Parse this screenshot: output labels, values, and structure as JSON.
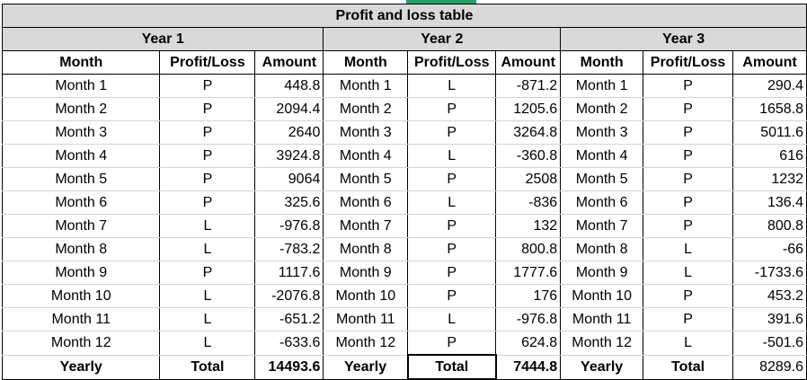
{
  "title": "Profit and loss table",
  "years": [
    "Year 1",
    "Year 2",
    "Year 3"
  ],
  "headers": [
    "Month",
    "Profit/Loss",
    "Amount"
  ],
  "rows": [
    [
      [
        "Month 1",
        "P",
        "448.8"
      ],
      [
        "Month 1",
        "L",
        "-871.2"
      ],
      [
        "Month 1",
        "P",
        "290.4"
      ]
    ],
    [
      [
        "Month 2",
        "P",
        "2094.4"
      ],
      [
        "Month 2",
        "P",
        "1205.6"
      ],
      [
        "Month 2",
        "P",
        "1658.8"
      ]
    ],
    [
      [
        "Month 3",
        "P",
        "2640"
      ],
      [
        "Month 3",
        "P",
        "3264.8"
      ],
      [
        "Month 3",
        "P",
        "5011.6"
      ]
    ],
    [
      [
        "Month 4",
        "P",
        "3924.8"
      ],
      [
        "Month 4",
        "L",
        "-360.8"
      ],
      [
        "Month 4",
        "P",
        "616"
      ]
    ],
    [
      [
        "Month 5",
        "P",
        "9064"
      ],
      [
        "Month 5",
        "P",
        "2508"
      ],
      [
        "Month 5",
        "P",
        "1232"
      ]
    ],
    [
      [
        "Month 6",
        "P",
        "325.6"
      ],
      [
        "Month 6",
        "L",
        "-836"
      ],
      [
        "Month 6",
        "P",
        "136.4"
      ]
    ],
    [
      [
        "Month 7",
        "L",
        "-976.8"
      ],
      [
        "Month 7",
        "P",
        "132"
      ],
      [
        "Month 7",
        "P",
        "800.8"
      ]
    ],
    [
      [
        "Month 8",
        "L",
        "-783.2"
      ],
      [
        "Month 8",
        "P",
        "800.8"
      ],
      [
        "Month 8",
        "L",
        "-66"
      ]
    ],
    [
      [
        "Month 9",
        "P",
        "1117.6"
      ],
      [
        "Month 9",
        "P",
        "1777.6"
      ],
      [
        "Month 9",
        "L",
        "-1733.6"
      ]
    ],
    [
      [
        "Month 10",
        "L",
        "-2076.8"
      ],
      [
        "Month 10",
        "P",
        "176"
      ],
      [
        "Month 10",
        "P",
        "453.2"
      ]
    ],
    [
      [
        "Month 11",
        "L",
        "-651.2"
      ],
      [
        "Month 11",
        "L",
        "-976.8"
      ],
      [
        "Month 11",
        "P",
        "391.6"
      ]
    ],
    [
      [
        "Month 12",
        "L",
        "-633.6"
      ],
      [
        "Month 12",
        "P",
        "624.8"
      ],
      [
        "Month 12",
        "L",
        "-501.6"
      ]
    ]
  ],
  "totals": [
    [
      "Yearly",
      "Total",
      "14493.6"
    ],
    [
      "Yearly",
      "Total",
      "7444.8"
    ],
    [
      "Yearly",
      "Total",
      "8289.6"
    ]
  ]
}
